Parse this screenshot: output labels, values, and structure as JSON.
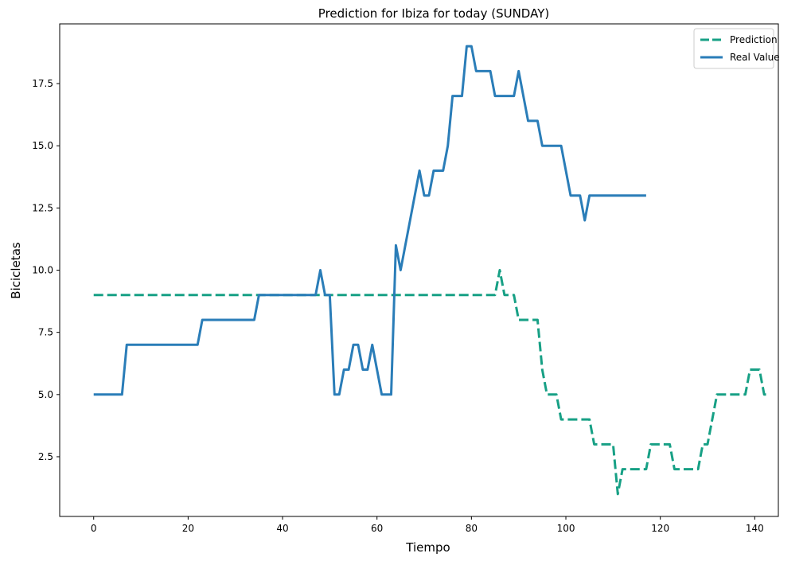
{
  "chart_data": {
    "type": "line",
    "title": "Prediction for Ibiza for today (SUNDAY)",
    "xlabel": "Tiempo",
    "ylabel": "Bicicletas",
    "xlim": [
      -7.2,
      145
    ],
    "ylim": [
      0.1,
      19.9
    ],
    "xticks": [
      "0",
      "20",
      "40",
      "60",
      "80",
      "100",
      "120",
      "140"
    ],
    "xtick_values": [
      0,
      20,
      40,
      60,
      80,
      100,
      120,
      140
    ],
    "yticks": [
      "2.5",
      "5.0",
      "7.5",
      "10.0",
      "12.5",
      "15.0",
      "17.5"
    ],
    "ytick_values": [
      2.5,
      5.0,
      7.5,
      10.0,
      12.5,
      15.0,
      17.5
    ],
    "grid": false,
    "legend_position": "top-right",
    "series": [
      {
        "name": "Prediction",
        "color": "#17a085",
        "style": "dashed",
        "values": [
          9,
          9,
          9,
          9,
          9,
          9,
          9,
          9,
          9,
          9,
          9,
          9,
          9,
          9,
          9,
          9,
          9,
          9,
          9,
          9,
          9,
          9,
          9,
          9,
          9,
          9,
          9,
          9,
          9,
          9,
          9,
          9,
          9,
          9,
          9,
          9,
          9,
          9,
          9,
          9,
          9,
          9,
          9,
          9,
          9,
          9,
          9,
          9,
          9,
          9,
          9,
          9,
          9,
          9,
          9,
          9,
          9,
          9,
          9,
          9,
          9,
          9,
          9,
          9,
          9,
          9,
          9,
          9,
          9,
          9,
          9,
          9,
          9,
          9,
          9,
          9,
          9,
          9,
          9,
          9,
          9,
          9,
          9,
          9,
          9,
          9,
          10,
          9,
          9,
          9,
          8,
          8,
          8,
          8,
          8,
          6,
          5,
          5,
          5,
          4,
          4,
          4,
          4,
          4,
          4,
          4,
          3,
          3,
          3,
          3,
          3,
          1,
          2,
          2,
          2,
          2,
          2,
          2,
          3,
          3,
          3,
          3,
          3,
          2,
          2,
          2,
          2,
          2,
          2,
          3,
          3,
          4,
          5,
          5,
          5,
          5,
          5,
          5,
          5,
          6,
          6,
          6,
          5,
          5
        ]
      },
      {
        "name": "Real Value",
        "color": "#2a7db8",
        "style": "solid",
        "values": [
          5,
          5,
          5,
          5,
          5,
          5,
          5,
          7,
          7,
          7,
          7,
          7,
          7,
          7,
          7,
          7,
          7,
          7,
          7,
          7,
          7,
          7,
          7,
          8,
          8,
          8,
          8,
          8,
          8,
          8,
          8,
          8,
          8,
          8,
          8,
          9,
          9,
          9,
          9,
          9,
          9,
          9,
          9,
          9,
          9,
          9,
          9,
          9,
          10,
          9,
          9,
          5,
          5,
          6,
          6,
          7,
          7,
          6,
          6,
          7,
          6,
          5,
          5,
          5,
          11,
          10,
          11,
          12,
          13,
          14,
          13,
          13,
          14,
          14,
          14,
          15,
          17,
          17,
          17,
          19,
          19,
          18,
          18,
          18,
          18,
          17,
          17,
          17,
          17,
          17,
          18,
          17,
          16,
          16,
          16,
          15,
          15,
          15,
          15,
          15,
          14,
          13,
          13,
          13,
          12,
          13,
          13,
          13,
          13,
          13,
          13,
          13,
          13,
          13,
          13,
          13,
          13,
          13
        ]
      }
    ]
  }
}
